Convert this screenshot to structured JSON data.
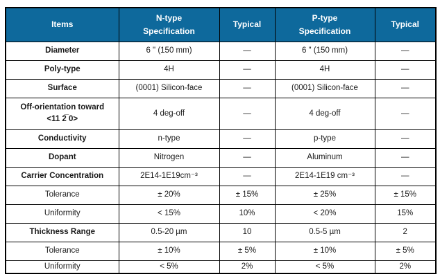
{
  "theme": {
    "header_bg": "#0e699c",
    "header_text": "#ffffff",
    "border_color": "#000000"
  },
  "header": {
    "items": "Items",
    "n_spec_line1": "N-type",
    "n_spec_line2": "Specification",
    "typical1": "Typical",
    "p_spec_line1": "P-type",
    "p_spec_line2": "Specification",
    "typical2": "Typical"
  },
  "rows": [
    {
      "item": "Diameter",
      "n_spec": "6 \" (150 mm)",
      "n_typ": "—",
      "p_spec": "6 \" (150 mm)",
      "p_typ": "—"
    },
    {
      "item": "Poly-type",
      "n_spec": "4H",
      "n_typ": "—",
      "p_spec": "4H",
      "p_typ": "—"
    },
    {
      "item": "Surface",
      "n_spec": "(0001) Silicon-face",
      "n_typ": "—",
      "p_spec": "(0001) Silicon-face",
      "p_typ": "—"
    },
    {
      "item_line1": "Off-orientation toward",
      "item_line2": "<11 2̅ 0>",
      "n_spec": "4 deg-off",
      "n_typ": "—",
      "p_spec": "4 deg-off",
      "p_typ": "—"
    },
    {
      "item": "Conductivity",
      "n_spec": "n-type",
      "n_typ": "—",
      "p_spec": "p-type",
      "p_typ": "—"
    },
    {
      "item": "Dopant",
      "n_spec": "Nitrogen",
      "n_typ": "—",
      "p_spec": "Aluminum",
      "p_typ": "—"
    },
    {
      "item": "Carrier Concentration",
      "n_spec": "2E14-1E19cm⁻³",
      "n_typ": "—",
      "p_spec": "2E14-1E19 cm⁻³",
      "p_typ": "—"
    },
    {
      "item": "Tolerance",
      "n_spec": "± 20%",
      "n_typ": "± 15%",
      "p_spec": "± 25%",
      "p_typ": "± 15%"
    },
    {
      "item": "Uniformity",
      "n_spec": "< 15%",
      "n_typ": "10%",
      "p_spec": "< 20%",
      "p_typ": "15%"
    },
    {
      "item": "Thickness Range",
      "n_spec": "0.5-20 µm",
      "n_typ": "10",
      "p_spec": "0.5-5 µm",
      "p_typ": "2"
    },
    {
      "item": "Tolerance",
      "n_spec": "± 10%",
      "n_typ": "± 5%",
      "p_spec": "± 10%",
      "p_typ": "± 5%"
    },
    {
      "item": "Uniformity",
      "n_spec": "< 5%",
      "n_typ": "2%",
      "p_spec": "< 5%",
      "p_typ": "2%"
    }
  ]
}
